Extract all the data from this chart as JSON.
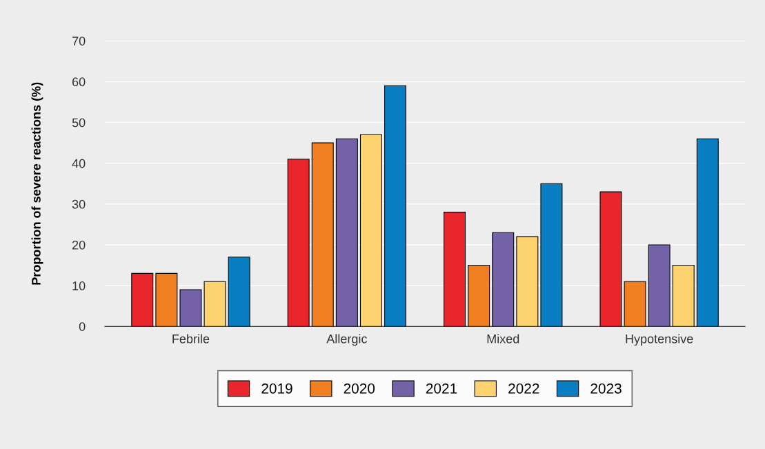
{
  "chart_data": {
    "type": "bar",
    "ylabel": "Proportion of severe reactions (%)",
    "categories": [
      "Febrile",
      "Allergic",
      "Mixed",
      "Hypotensive"
    ],
    "series": [
      {
        "name": "2019",
        "color": "#e8262c",
        "values": [
          13,
          41,
          28,
          33
        ]
      },
      {
        "name": "2020",
        "color": "#f07f22",
        "values": [
          13,
          45,
          15,
          11
        ]
      },
      {
        "name": "2021",
        "color": "#7462a8",
        "values": [
          9,
          46,
          23,
          20
        ]
      },
      {
        "name": "2022",
        "color": "#fcd36e",
        "values": [
          11,
          47,
          22,
          15
        ]
      },
      {
        "name": "2023",
        "color": "#0a7ec2",
        "values": [
          17,
          59,
          35,
          46
        ]
      }
    ],
    "ylim": [
      0,
      70
    ],
    "yticks": [
      0,
      10,
      20,
      30,
      40,
      50,
      60,
      70
    ],
    "grid": "y",
    "legend": "bottom"
  }
}
